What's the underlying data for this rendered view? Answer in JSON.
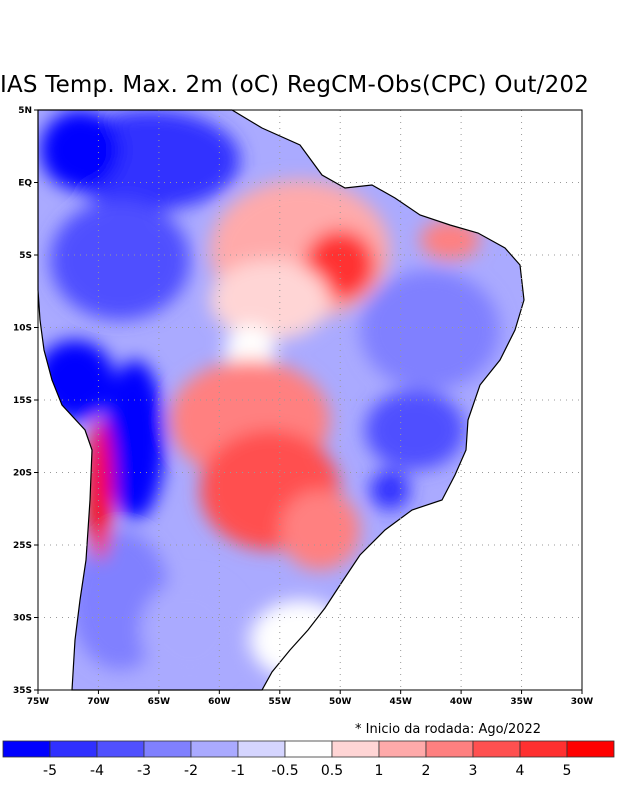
{
  "title": "IAS Temp. Max. 2m (oC) RegCM-Obs(CPC) Out/202",
  "note": "* Inicio da rodada: Ago/2022",
  "lat_labels": [
    "5N",
    "EQ",
    "5S",
    "10S",
    "15S",
    "20S",
    "25S",
    "30S",
    "35S"
  ],
  "lon_labels": [
    "75W",
    "70W",
    "65W",
    "60W",
    "55W",
    "50W",
    "45W",
    "40W",
    "35W",
    "30W"
  ],
  "colorbar": {
    "labels": [
      "-5",
      "-4",
      "-3",
      "-2",
      "-1",
      "-0.5",
      "0.5",
      "1",
      "2",
      "3",
      "4",
      "5"
    ],
    "colors": [
      "#0000ff",
      "#3030ff",
      "#5050ff",
      "#8080ff",
      "#aaaaff",
      "#d5d5ff",
      "#ffffff",
      "#ffd5d5",
      "#ffaaaa",
      "#ff8080",
      "#ff5050",
      "#ff3030",
      "#ff0000"
    ]
  }
}
